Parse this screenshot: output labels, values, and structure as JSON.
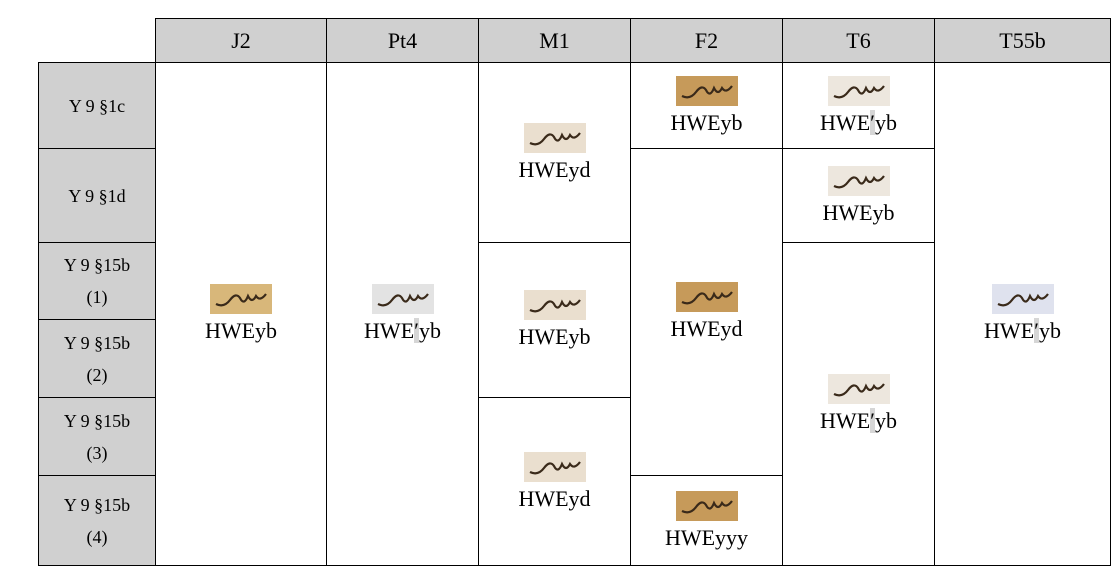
{
  "table": {
    "columns": [
      "J2",
      "Pt4",
      "M1",
      "F2",
      "T6",
      "T55b"
    ],
    "rows": [
      "Y 9 §1c",
      "Y 9 §1d",
      "Y 9 §15b (1)",
      "Y 9 §15b (2)",
      "Y 9 §15b (3)",
      "Y 9 §15b (4)"
    ],
    "cells": [
      [
        "HWEyb"
      ],
      [
        "HWE′yb"
      ],
      [
        "HWEyd",
        "HWEyb",
        "HWEyd"
      ],
      [
        "HWEyb",
        "HWEyd",
        "HWEyyy"
      ],
      [
        "HWE′yb",
        "HWEyb",
        "HWE′yb"
      ],
      [
        "HWE′yb"
      ]
    ]
  }
}
